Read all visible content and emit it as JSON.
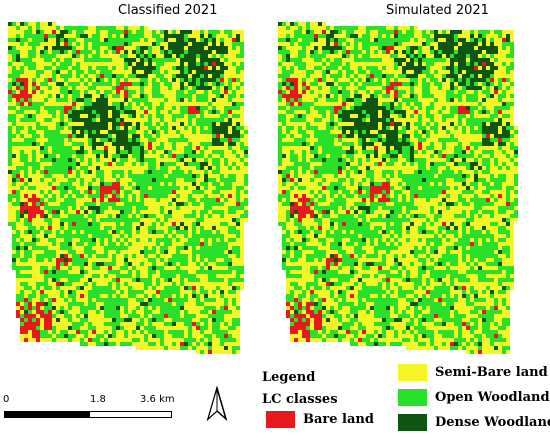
{
  "maps": [
    {
      "title": "Classified 2021"
    },
    {
      "title": "Simulated 2021"
    }
  ],
  "scale_bar": {
    "labels": [
      "0",
      "1.8",
      "3.6 km"
    ]
  },
  "legend": {
    "title": "Legend",
    "subtitle": "LC classes",
    "classes": [
      {
        "label": "Bare land",
        "color": "#e8191c"
      },
      {
        "label": "Semi-Bare land",
        "color": "#f5f527"
      },
      {
        "label": "Open Woodland",
        "color": "#29e02a"
      },
      {
        "label": "Dense Woodland",
        "color": "#0e5512"
      }
    ]
  },
  "north_arrow": {
    "icon": "north-arrow-icon"
  }
}
